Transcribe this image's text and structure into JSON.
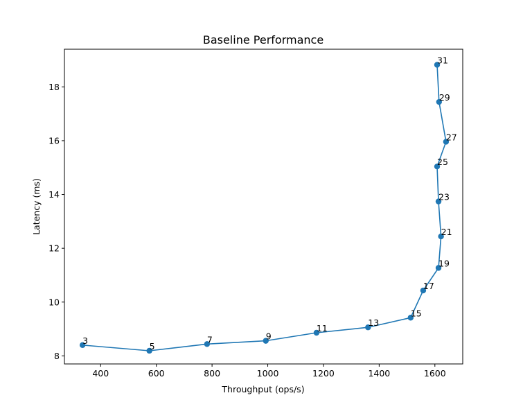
{
  "chart_data": {
    "type": "line",
    "title": "Baseline Performance",
    "xlabel": "Throughput (ops/s)",
    "ylabel": "Latency (ms)",
    "xlim": [
      270,
      1700
    ],
    "ylim": [
      7.7,
      19.4
    ],
    "xticks": [
      400,
      600,
      800,
      1000,
      1200,
      1400,
      1600
    ],
    "yticks": [
      8,
      10,
      12,
      14,
      16,
      18
    ],
    "grid": false,
    "color": "#1f77b4",
    "series": [
      {
        "x": [
          335,
          575,
          782,
          993,
          1175,
          1360,
          1513,
          1558,
          1613,
          1622,
          1613,
          1608,
          1640,
          1615,
          1608
        ],
        "y": [
          8.4,
          8.19,
          8.44,
          8.56,
          8.86,
          9.06,
          9.42,
          10.43,
          11.27,
          12.44,
          13.74,
          15.04,
          15.96,
          17.44,
          18.82
        ],
        "labels": [
          "3",
          "5",
          "7",
          "9",
          "11",
          "13",
          "15",
          "17",
          "19",
          "21",
          "23",
          "25",
          "27",
          "29",
          "31"
        ]
      }
    ]
  }
}
